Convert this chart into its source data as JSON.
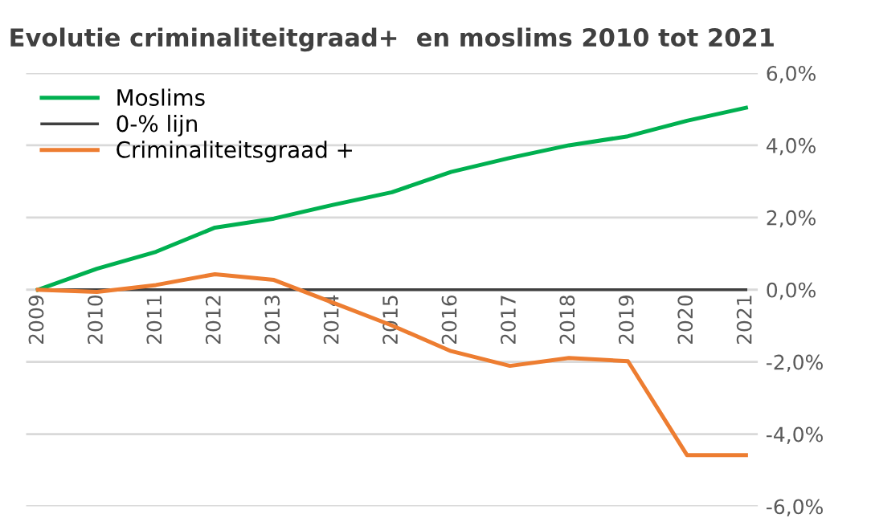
{
  "chart_data": {
    "type": "line",
    "title": "Evolutie criminaliteitgraad+  en moslims 2010 tot 2021",
    "categories": [
      "2009",
      "2010",
      "2011",
      "2012",
      "2013",
      "2014",
      "2015",
      "2016",
      "2017",
      "2018",
      "2019",
      "2020",
      "2021"
    ],
    "series": [
      {
        "name": "Moslims",
        "color": "#00b050",
        "values": [
          0,
          0.58,
          1.05,
          1.72,
          1.97,
          2.35,
          2.7,
          3.26,
          3.65,
          4.0,
          4.25,
          4.68,
          5.04
        ]
      },
      {
        "name": "0-% lijn",
        "color": "#404040",
        "values": [
          0,
          0,
          0,
          0,
          0,
          0,
          0,
          0,
          0,
          0,
          0,
          0,
          0
        ]
      },
      {
        "name": "Criminaliteitsgraad +",
        "color": "#ed7d31",
        "values": [
          0,
          -0.06,
          0.13,
          0.43,
          0.27,
          -0.36,
          -0.99,
          -1.7,
          -2.11,
          -1.89,
          -1.98,
          -4.58,
          -4.58
        ]
      }
    ],
    "ylim": [
      -6,
      6
    ],
    "yticks": [
      {
        "value": -6,
        "label": "-6,0%"
      },
      {
        "value": -4,
        "label": "-4,0%"
      },
      {
        "value": -2,
        "label": "-2,0%"
      },
      {
        "value": 0,
        "label": "0,0%"
      },
      {
        "value": 2,
        "label": "2,0%"
      },
      {
        "value": 4,
        "label": "4,0%"
      },
      {
        "value": 6,
        "label": "6,0%"
      }
    ],
    "grid": "y",
    "legend": "top left",
    "marker": "none",
    "line_style": "solid"
  }
}
